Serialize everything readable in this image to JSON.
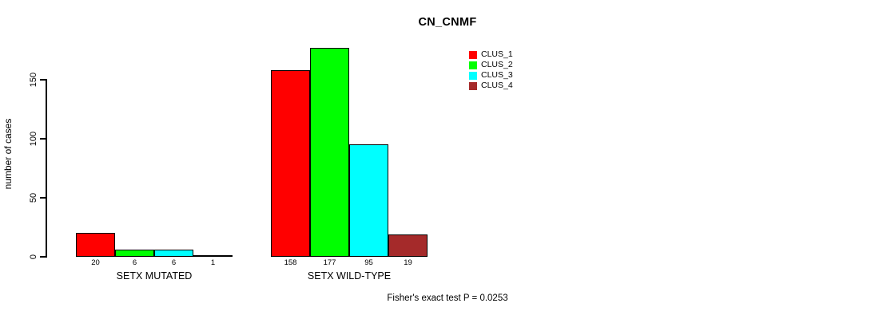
{
  "chart_data": {
    "type": "bar",
    "title": "CN_CNMF",
    "xlabel": "",
    "ylabel": "number of cases",
    "yticks": [
      0,
      50,
      100,
      150
    ],
    "ylim": [
      0,
      185
    ],
    "grid": false,
    "legend_position": "top-right",
    "series": [
      {
        "name": "CLUS_1",
        "color": "#FF0000"
      },
      {
        "name": "CLUS_2",
        "color": "#00FF00"
      },
      {
        "name": "CLUS_3",
        "color": "#00FFFF"
      },
      {
        "name": "CLUS_4",
        "color": "#A52A2A"
      }
    ],
    "groups": [
      {
        "label": "SETX MUTATED",
        "values": [
          20,
          6,
          6,
          1
        ]
      },
      {
        "label": "SETX WILD-TYPE",
        "values": [
          158,
          177,
          95,
          19
        ]
      }
    ],
    "annotation": "Fisher's exact test P = 0.0253"
  }
}
